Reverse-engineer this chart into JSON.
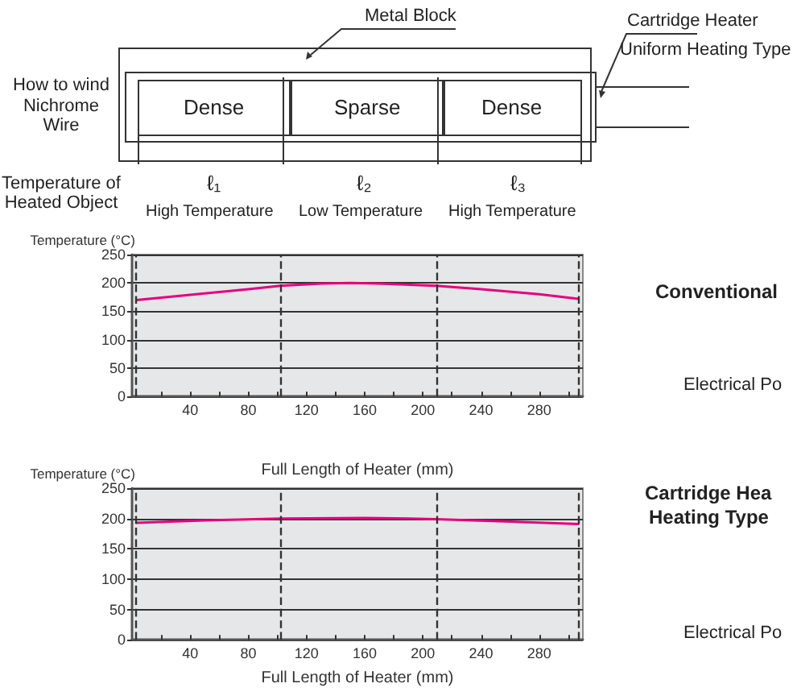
{
  "chart_data": [
    {
      "type": "line",
      "xlabel": "Full Length of Heater (mm)",
      "ylabel": "Temperature (°C)",
      "annotations": [
        "Metal Block",
        "Cartridge Heater",
        "Uniform Heating Type",
        "How to wind Nichrome Wire",
        "Dense",
        "Sparse",
        "Dense",
        "Temperature of Heated Object",
        "ℓ₁",
        "ℓ₂",
        "ℓ₃",
        "High Temperature",
        "Low Temperature",
        "High Temperature",
        "Conventional",
        "Electrical Po"
      ],
      "series": [
        {
          "color": "#e6007e",
          "x": [
            3,
            40,
            80,
            102,
            130,
            150,
            170,
            209,
            240,
            280,
            307
          ],
          "values": [
            170,
            179,
            189,
            195,
            199,
            200,
            199,
            195,
            189,
            180,
            172
          ]
        }
      ],
      "xlim": [
        0,
        310
      ],
      "xticks": [
        {
          "value": 20,
          "label": null
        },
        40,
        {
          "value": 60,
          "label": null
        },
        80,
        {
          "value": 100,
          "label": null
        },
        120,
        {
          "value": 140,
          "label": null
        },
        160,
        {
          "value": 180,
          "label": null
        },
        200,
        {
          "value": 220,
          "label": null
        },
        240,
        {
          "value": 260,
          "label": null
        },
        280,
        {
          "value": 300,
          "label": null
        }
      ],
      "ylim": [
        0,
        250
      ],
      "yticks": [
        0,
        50,
        100,
        150,
        200,
        250
      ],
      "ref_lines": [
        {
          "axis": "x",
          "value": 3,
          "line_style": "dashed"
        },
        {
          "axis": "x",
          "value": 102,
          "line_style": "dashed"
        },
        {
          "axis": "x",
          "value": 209,
          "line_style": "dashed"
        },
        {
          "axis": "x",
          "value": 307,
          "line_style": "dashed"
        }
      ],
      "grid": "y",
      "marker": "none",
      "line_style": "solid"
    },
    {
      "type": "line",
      "xlabel": "Full Length of Heater (mm)",
      "ylabel": "Temperature (°C)",
      "annotations": [
        "Cartridge Hea",
        "Heating Type",
        "Electrical Po"
      ],
      "series": [
        {
          "color": "#e6007e",
          "x": [
            3,
            50,
            102,
            160,
            209,
            260,
            307
          ],
          "values": [
            193,
            197,
            200,
            201,
            199,
            195,
            191
          ]
        }
      ],
      "xlim": [
        0,
        310
      ],
      "xticks": [
        {
          "value": 20,
          "label": null
        },
        40,
        {
          "value": 60,
          "label": null
        },
        80,
        {
          "value": 100,
          "label": null
        },
        120,
        {
          "value": 140,
          "label": null
        },
        160,
        {
          "value": 180,
          "label": null
        },
        200,
        {
          "value": 220,
          "label": null
        },
        240,
        {
          "value": 260,
          "label": null
        },
        280,
        {
          "value": 300,
          "label": null
        }
      ],
      "ylim": [
        0,
        250
      ],
      "yticks": [
        0,
        50,
        100,
        150,
        200,
        250
      ],
      "ref_lines": [
        {
          "axis": "x",
          "value": 3,
          "line_style": "dashed"
        },
        {
          "axis": "x",
          "value": 102,
          "line_style": "dashed"
        },
        {
          "axis": "x",
          "value": 209,
          "line_style": "dashed"
        },
        {
          "axis": "x",
          "value": 307,
          "line_style": "dashed"
        }
      ],
      "grid": "y",
      "marker": "none",
      "line_style": "solid"
    }
  ]
}
